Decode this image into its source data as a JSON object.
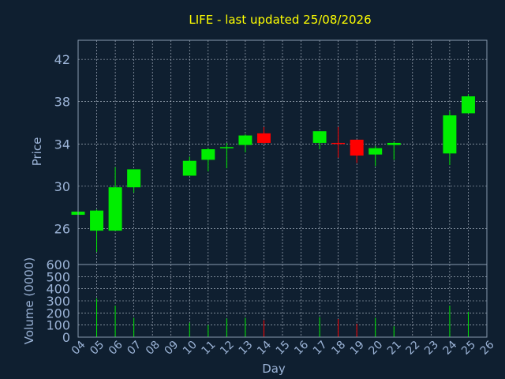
{
  "chart_data": {
    "type": "candlestick",
    "title": "LIFE - last updated 25/08/2026",
    "xlabel": "Day",
    "price_ylabel": "Price",
    "volume_ylabel": "Volume (0000)",
    "categories": [
      "04",
      "05",
      "06",
      "07",
      "08",
      "09",
      "10",
      "11",
      "12",
      "13",
      "14",
      "15",
      "16",
      "17",
      "18",
      "19",
      "20",
      "21",
      "22",
      "23",
      "24",
      "25",
      "26"
    ],
    "price_ticks": [
      26,
      30,
      34,
      38,
      42
    ],
    "price_ylim": [
      22.6,
      43.8
    ],
    "volume_ticks": [
      0,
      100,
      200,
      300,
      400,
      500,
      600
    ],
    "volume_ylim": [
      0,
      600
    ],
    "grid": true,
    "candles": [
      {
        "day": "04",
        "open": 27.3,
        "high": 27.6,
        "low": 27.3,
        "close": 27.6,
        "volume": 0
      },
      {
        "day": "05",
        "open": 25.8,
        "high": 27.8,
        "low": 23.8,
        "close": 27.7,
        "volume": 320
      },
      {
        "day": "06",
        "open": 25.8,
        "high": 31.8,
        "low": 25.8,
        "close": 29.9,
        "volume": 260
      },
      {
        "day": "07",
        "open": 29.9,
        "high": 31.6,
        "low": 29.4,
        "close": 31.6,
        "volume": 160
      },
      {
        "day": "10",
        "open": 31.0,
        "high": 32.8,
        "low": 31.0,
        "close": 32.4,
        "volume": 120
      },
      {
        "day": "11",
        "open": 32.5,
        "high": 33.6,
        "low": 31.4,
        "close": 33.5,
        "volume": 100
      },
      {
        "day": "12",
        "open": 33.6,
        "high": 34.1,
        "low": 31.7,
        "close": 33.7,
        "volume": 155
      },
      {
        "day": "13",
        "open": 33.9,
        "high": 34.9,
        "low": 33.2,
        "close": 34.8,
        "volume": 160
      },
      {
        "day": "14",
        "open": 35.0,
        "high": 35.6,
        "low": 34.0,
        "close": 34.1,
        "volume": 140
      },
      {
        "day": "17",
        "open": 34.1,
        "high": 35.2,
        "low": 33.5,
        "close": 35.2,
        "volume": 165
      },
      {
        "day": "18",
        "open": 34.1,
        "high": 35.6,
        "low": 32.7,
        "close": 34.0,
        "volume": 150
      },
      {
        "day": "19",
        "open": 34.4,
        "high": 34.4,
        "low": 32.2,
        "close": 32.9,
        "volume": 110
      },
      {
        "day": "20",
        "open": 33.0,
        "high": 33.8,
        "low": 31.9,
        "close": 33.6,
        "volume": 160
      },
      {
        "day": "21",
        "open": 33.9,
        "high": 34.2,
        "low": 32.5,
        "close": 34.1,
        "volume": 90
      },
      {
        "day": "24",
        "open": 33.1,
        "high": 37.1,
        "low": 32.0,
        "close": 36.7,
        "volume": 260
      },
      {
        "day": "25",
        "open": 36.9,
        "high": 38.7,
        "low": 36.9,
        "close": 38.5,
        "volume": 210
      }
    ]
  },
  "colors": {
    "background": "#0f1f30",
    "up": "#00ee00",
    "down": "#ff0000",
    "title": "#ffff00",
    "axis_text": "#9bb3d6",
    "frame": "#8a9bb0",
    "grid": "#bfc9d6"
  }
}
